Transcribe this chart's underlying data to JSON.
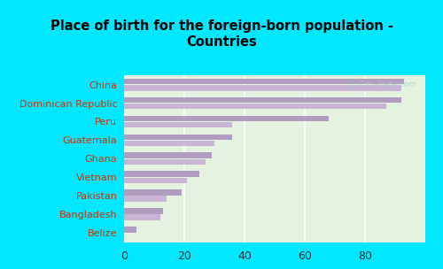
{
  "title": "Place of birth for the foreign-born population -\nCountries",
  "categories": [
    "China",
    "Dominican Republic",
    "Peru",
    "Guatemala",
    "Ghana",
    "Vietnam",
    "Pakistan",
    "Bangladesh",
    "Belize"
  ],
  "values1": [
    93,
    92,
    68,
    36,
    29,
    25,
    19,
    13,
    4
  ],
  "values2": [
    92,
    87,
    36,
    30,
    27,
    21,
    14,
    12,
    0
  ],
  "bar_color1": "#b09dc0",
  "bar_color2": "#c8b4d4",
  "background_outer": "#00e8ff",
  "background_plot": "#e6f2e0",
  "xlim": [
    0,
    100
  ],
  "label_color": "#cc3300",
  "title_color": "#000000",
  "watermark": "ⓘ  City-Data.com",
  "bar_height": 0.32,
  "grid_color": "#ffffff",
  "xticks": [
    0,
    20,
    40,
    60,
    80
  ],
  "xlabel_fontsize": 9,
  "ylabel_fontsize": 8,
  "title_fontsize": 10.5
}
